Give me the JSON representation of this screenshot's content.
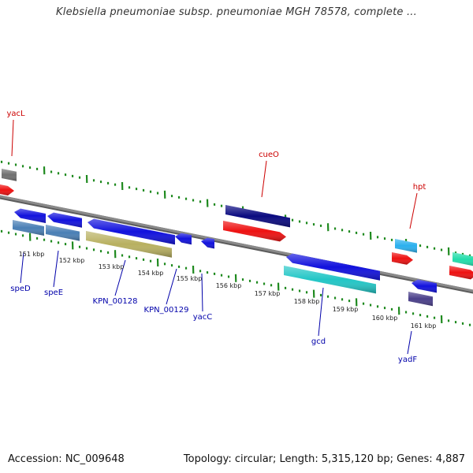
{
  "title": "Klebsiella pneumoniae subsp. pneumoniae MGH 78578, complete ...",
  "footer": {
    "accession": "Accession: NC_009648",
    "summary": "Topology: circular; Length: 5,315,120 bp; Genes: 4,887"
  },
  "colors": {
    "backbone": "#8a8a8a",
    "tick": "#1f8a1f",
    "forward_label": "#cc0000",
    "reverse_label": "#0000aa",
    "kbp_text": "#222222"
  },
  "kbp_labels": [
    "151 kbp",
    "152 kbp",
    "153 kbp",
    "154 kbp",
    "155 kbp",
    "156 kbp",
    "157 kbp",
    "158 kbp",
    "159 kbp",
    "160 kbp",
    "161 kbp"
  ],
  "forward_gene_labels": [
    "yacL",
    "cueO",
    "hpt"
  ],
  "reverse_gene_labels": [
    "speD",
    "speE",
    "KPN_00128",
    "KPN_00129",
    "yacC",
    "gcd",
    "yadF"
  ],
  "gene_colors": {
    "gray": "#707070",
    "red": "#ee1111",
    "navy": "#0a0a80",
    "skyblue": "#2ab0ee",
    "spring": "#22ddaa",
    "blue": "#1111dd",
    "steel": "#4a7fb5",
    "olive": "#b8b060",
    "cyan": "#22c6c6",
    "slate": "#4a3f8a"
  }
}
